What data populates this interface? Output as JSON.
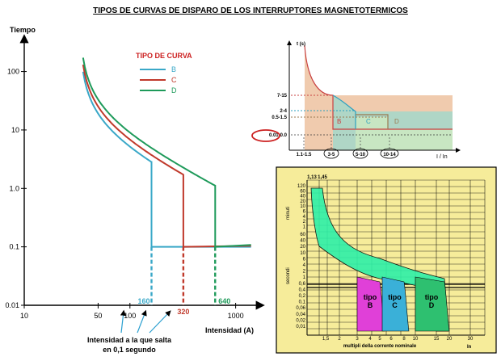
{
  "title": "TIPOS DE CURVAS DE DISPARO DE LOS INTERRUPTORES MAGNETOTERMICOS",
  "chart_data": [
    {
      "type": "line",
      "scale": "log-log",
      "ylabel": "Tiempo",
      "xlabel": "Intensidad",
      "xunit": "(A)",
      "xticks": [
        "10",
        "50",
        "100",
        "1000"
      ],
      "yticks": [
        "100",
        "10",
        "1.0",
        "0.1",
        "0.01"
      ],
      "xlim": [
        10,
        1800
      ],
      "ylim": [
        0.01,
        500
      ],
      "legend_title": "TIPO DE CURVA",
      "series": [
        {
          "name": "B",
          "color": "#3aa8c8",
          "trip_current": 160
        },
        {
          "name": "C",
          "color": "#c0392b",
          "trip_current": 320
        },
        {
          "name": "D",
          "color": "#1e9a5a",
          "trip_current": 640
        }
      ],
      "annotations": [
        "160",
        "320",
        "640"
      ],
      "annotation_text_1": "Intensidad a la que salta",
      "annotation_text_2": "en 0,1 segundo"
    },
    {
      "type": "area",
      "ylabel": "t (s)",
      "xlabel": "I / In",
      "yticks": [
        "7-15",
        "2-4",
        "0.5-1.5",
        "0.01-0.0"
      ],
      "xticks": [
        "1.1-1.5",
        "3-5",
        "5-10",
        "10-14"
      ],
      "region_labels": [
        "B",
        "C",
        "D"
      ]
    },
    {
      "type": "area",
      "top_labels": [
        "1,13",
        "1,45"
      ],
      "yaxis_labels": [
        "minuti",
        "secondi"
      ],
      "yticks_min": [
        "120",
        "60",
        "40",
        "20",
        "10",
        "6",
        "4",
        "2",
        "1"
      ],
      "yticks_sec": [
        "60",
        "40",
        "20",
        "10",
        "6",
        "4",
        "2",
        "1",
        "0,6",
        "0,4",
        "0,2",
        "0,1",
        "0,06",
        "0,04",
        "0,02",
        "0,01"
      ],
      "xticks": [
        "1,5",
        "2",
        "3",
        "4",
        "5",
        "6",
        "8",
        "10",
        "15",
        "20",
        "30"
      ],
      "xlabel": "multipli della corrente nominale",
      "xunit": "In",
      "zone_labels": [
        {
          "l1": "tipo",
          "l2": "B",
          "color": "#e040d8"
        },
        {
          "l1": "tipo",
          "l2": "C",
          "color": "#3ab0d8"
        },
        {
          "l1": "tipo",
          "l2": "D",
          "color": "#2ec070"
        }
      ],
      "colors": {
        "background": "#f6ec9a",
        "band": "#2ef0a8"
      }
    }
  ]
}
